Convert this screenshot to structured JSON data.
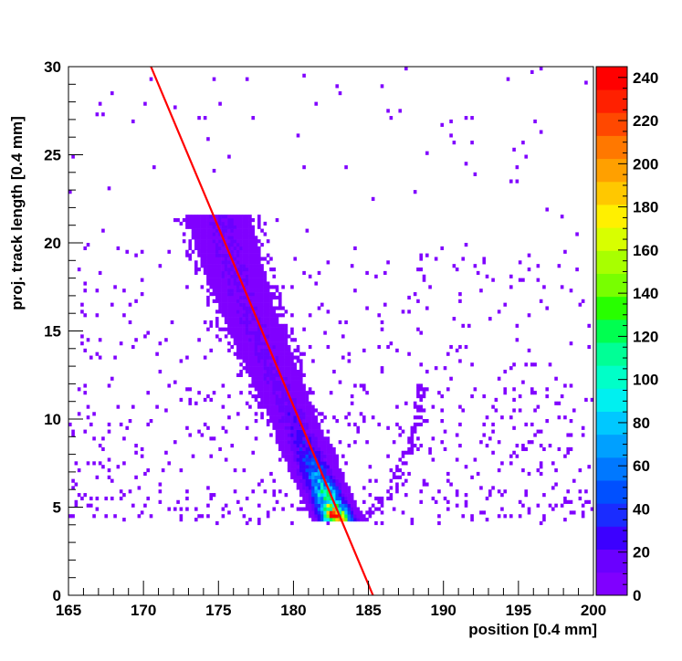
{
  "chart_data": {
    "type": "heatmap",
    "xlabel": "position [0.4 mm]",
    "ylabel": "proj. track length [0.4 mm]",
    "xlim": [
      165,
      200
    ],
    "ylim": [
      0,
      30
    ],
    "x_ticks": [
      165,
      170,
      175,
      180,
      185,
      190,
      195,
      200
    ],
    "y_ticks": [
      0,
      5,
      10,
      15,
      20,
      25,
      30
    ],
    "bin_width_x": 0.2,
    "bin_height_y": 0.2,
    "occupied_y_min": 4.0,
    "colorbar": {
      "range": [
        0,
        245
      ],
      "ticks": [
        0,
        20,
        40,
        60,
        80,
        100,
        120,
        140,
        160,
        180,
        200,
        220,
        240
      ],
      "colors": [
        "#8000ff",
        "#6a00ff",
        "#3c00ff",
        "#1a2cff",
        "#0050ff",
        "#0078ff",
        "#00a0ff",
        "#00c8ff",
        "#00f0f0",
        "#00ffc8",
        "#00ff96",
        "#00ff50",
        "#28ff00",
        "#78ff00",
        "#a8ff00",
        "#d8ff00",
        "#fff000",
        "#ffc800",
        "#ffa000",
        "#ff7800",
        "#ff4800",
        "#ff2000",
        "#ff0000"
      ]
    },
    "fit_line": {
      "color": "#ff0000",
      "points": [
        [
          170.5,
          30.0
        ],
        [
          185.3,
          0.0
        ]
      ]
    },
    "main_band": {
      "description_points": [
        [
          183.0,
          4.2
        ],
        [
          181.5,
          7.0
        ],
        [
          180.0,
          10.0
        ],
        [
          178.5,
          13.0
        ],
        [
          177.0,
          16.0
        ],
        [
          175.8,
          19.0
        ],
        [
          175.0,
          21.5
        ]
      ],
      "peak_value": 240
    },
    "secondary_band": {
      "points": [
        [
          184.5,
          4.2
        ],
        [
          185.5,
          5.0
        ],
        [
          186.5,
          6.0
        ],
        [
          187.3,
          7.5
        ],
        [
          188.0,
          9.0
        ],
        [
          188.4,
          10.5
        ],
        [
          188.6,
          12.0
        ]
      ]
    },
    "background_level": 1
  }
}
